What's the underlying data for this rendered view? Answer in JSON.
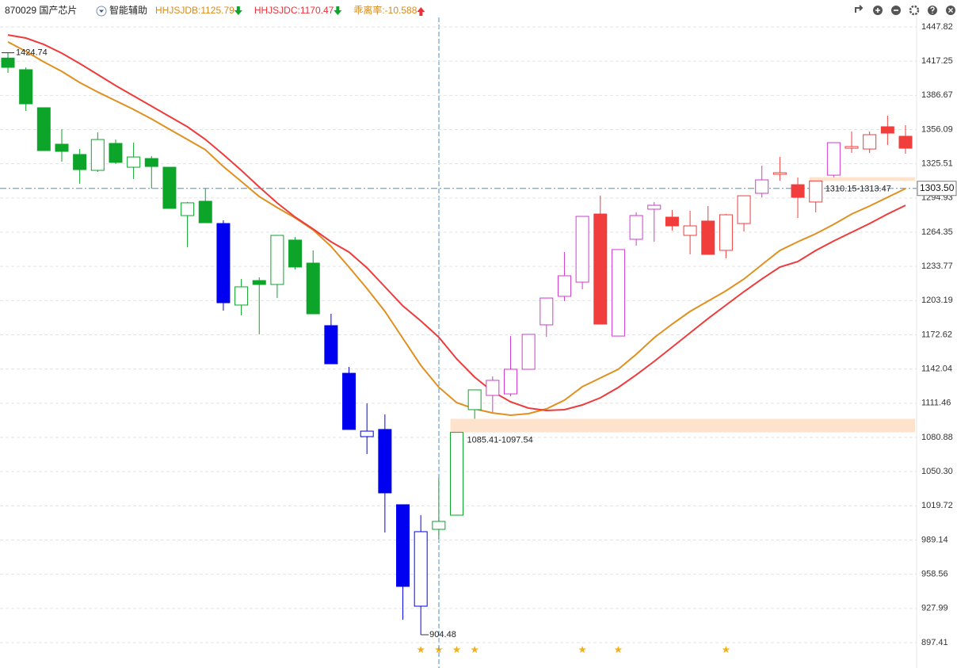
{
  "header": {
    "title": "870029 国产芯片",
    "assist": "智能辅助",
    "indicators": [
      {
        "text": "HHJSJDB:1125.79",
        "color": "#d98a1a",
        "arrow": "down",
        "arrow_color": "#0ca52a"
      },
      {
        "text": "HHJSJDC:1170.47",
        "color": "#e8333a",
        "arrow": "down",
        "arrow_color": "#0ca52a"
      },
      {
        "text": "乖离率:-10.588",
        "color": "#d98a1a",
        "arrow": "up",
        "arrow_color": "#e8333a"
      }
    ]
  },
  "chart_data": {
    "type": "candlestick",
    "ylim": [
      880.41,
      1457.74
    ],
    "yticks": [
      1447.82,
      1417.25,
      1386.67,
      1356.09,
      1325.51,
      1294.93,
      1264.35,
      1233.77,
      1203.19,
      1172.62,
      1142.04,
      1111.46,
      1080.88,
      {
        "value": 1050.3,
        "label": "1050.30"
      },
      1019.72,
      989.14,
      958.56,
      927.99,
      897.41
    ],
    "grid": true,
    "candles": {
      "open": [
        1420.0,
        1409.6,
        1375.6,
        1343.0,
        1333.8,
        1319.6,
        1343.7,
        1322.4,
        1330.2,
        1322.4,
        1279.2,
        1292.0,
        1272.1,
        1199.2,
        1221.1,
        1217.6,
        1257.3,
        1236.7,
        1180.8,
        1138.2,
        1081.6,
        1088.0,
        1020.7,
        930.0,
        998.7,
        1011.4,
        1105.7,
        1118.4,
        1119.8,
        1141.8,
        1181.5,
        1207.0,
        1219.7,
        1280.6,
        1171.5,
        1258.0,
        1284.9,
        1277.8,
        1261.5,
        1274.3,
        1248.1,
        1272.1,
        1299.1,
        1316.1,
        1306.8,
        1291.3,
        1315.3,
        1339.4,
        1338.7,
        1358.6,
        1350.1
      ],
      "high": [
        1424.74,
        1411.7,
        1375.6,
        1356.4,
        1338.7,
        1353.6,
        1347.2,
        1344.4,
        1332.4,
        1322.4,
        1291.3,
        1303.3,
        1275.0,
        1222.5,
        1224.0,
        1261.5,
        1260.1,
        1248.1,
        1191.4,
        1143.9,
        1111.3,
        1101.4,
        1020.7,
        1011.4,
        1044.7,
        1085.41,
        1123.4,
        1135.4,
        1171.5,
        1173.0,
        1205.5,
        1246.6,
        1278.5,
        1296.9,
        1248.8,
        1282.1,
        1291.3,
        1284.2,
        1283.5,
        1287.7,
        1280.6,
        1296.9,
        1323.8,
        1331.6,
        1313.2,
        1310.15,
        1344.4,
        1354.3,
        1354.3,
        1368.5,
        1360.0
      ],
      "low": [
        1406.7,
        1372.7,
        1337.3,
        1327.4,
        1307.6,
        1318.2,
        1325.3,
        1311.8,
        1303.3,
        1285.6,
        1250.9,
        1272.8,
        1194.2,
        1190.0,
        1173.0,
        1205.5,
        1231.0,
        1191.4,
        1146.7,
        1088.0,
        1066.0,
        995.9,
        917.9,
        904.48,
        989.5,
        1011.4,
        1097.54,
        1103.5,
        1117.7,
        1141.8,
        1170.8,
        1202.7,
        1213.3,
        1182.2,
        1171.5,
        1252.3,
        1255.8,
        1265.8,
        1244.5,
        1244.5,
        1241.0,
        1265.1,
        1295.5,
        1310.4,
        1277.1,
        1282.1,
        1313.47,
        1335.2,
        1335.2,
        1342.3,
        1334.5
      ],
      "close": [
        1411.7,
        1379.1,
        1337.3,
        1336.6,
        1320.3,
        1347.2,
        1326.7,
        1331.6,
        1323.1,
        1285.6,
        1290.6,
        1272.8,
        1201.3,
        1215.5,
        1217.6,
        1261.5,
        1233.2,
        1191.4,
        1146.7,
        1088.0,
        1086.5,
        1031.3,
        947.7,
        996.6,
        1005.8,
        1085.41,
        1123.4,
        1131.9,
        1141.8,
        1173.0,
        1205.5,
        1225.4,
        1278.5,
        1182.2,
        1248.8,
        1279.2,
        1288.4,
        1270.0,
        1270.0,
        1244.5,
        1279.9,
        1296.9,
        1311.1,
        1317.5,
        1295.5,
        1310.15,
        1344.4,
        1340.9,
        1351.5,
        1352.9,
        1339.4
      ],
      "colors": [
        "#0ca52a",
        "#0ca52a",
        "#0ca52a",
        "#0ca52a",
        "#0ca52a",
        "#0ca52a",
        "#0ca52a",
        "#0ca52a",
        "#0ca52a",
        "#0ca52a",
        "#0ca52a",
        "#0ca52a",
        "#0000f0",
        "#0ca52a",
        "#0ca52a",
        "#0ca52a",
        "#0ca52a",
        "#0ca52a",
        "#0000f0",
        "#0000f0",
        "#0000f0",
        "#0000f0",
        "#0000f0",
        "#0000f0",
        "#0ca52a",
        "#0ca52a",
        "#0ca52a",
        "#d23ad2",
        "#d23ad2",
        "#d23ad2",
        "#d23ad2",
        "#d23ad2",
        "#d23ad2",
        "#f23d3d",
        "#d23ad2",
        "#d23ad2",
        "#d23ad2",
        "#f23d3d",
        "#f23d3d",
        "#f23d3d",
        "#f23d3d",
        "#f23d3d",
        "#d23ad2",
        "#f23d3d",
        "#f23d3d",
        "#f23d3d",
        "#d23ad2",
        "#f23d3d",
        "#f23d3d",
        "#f23d3d",
        "#f23d3d"
      ]
    },
    "lines": [
      {
        "color": "#e0901f",
        "values": [
          1434.4,
          1425.9,
          1416.6,
          1408.1,
          1398.2,
          1389.7,
          1381.9,
          1374.1,
          1365.6,
          1356.4,
          1347.2,
          1338.0,
          1323.1,
          1309.7,
          1296.2,
          1286.3,
          1277.1,
          1266.5,
          1251.6,
          1233.2,
          1214.0,
          1193.5,
          1169.4,
          1145.3,
          1125.79,
          1112.0,
          1106.4,
          1102.8,
          1100.7,
          1102.1,
          1106.4,
          1114.2,
          1126.2,
          1134.0,
          1141.8,
          1155.2,
          1170.1,
          1182.2,
          1193.5,
          1202.7,
          1211.9,
          1222.5,
          1235.3,
          1248.0,
          1255.8,
          1262.9,
          1271.4,
          1280.6,
          1287.7,
          1295.5,
          1303.3
        ]
      },
      {
        "color": "#ee3b3b",
        "values": [
          1440.7,
          1437.9,
          1432.2,
          1424.4,
          1415.2,
          1405.3,
          1395.4,
          1386.2,
          1377.0,
          1367.8,
          1358.6,
          1347.2,
          1333.8,
          1319.6,
          1304.7,
          1290.5,
          1277.8,
          1267.2,
          1255.8,
          1246.6,
          1232.5,
          1215.5,
          1198.5,
          1185.0,
          1170.47,
          1151.0,
          1134.7,
          1121.9,
          1112.7,
          1107.1,
          1105.0,
          1105.7,
          1109.9,
          1116.3,
          1125.5,
          1136.8,
          1148.9,
          1161.6,
          1174.4,
          1187.1,
          1199.2,
          1211.2,
          1222.5,
          1233.2,
          1238.1,
          1248.0,
          1256.5,
          1264.3,
          1272.1,
          1280.6,
          1288.4
        ]
      }
    ],
    "max_label": 1424.74,
    "min_label": 904.48,
    "zones": [
      {
        "label": "1085.41-1097.54",
        "low": 1085.41,
        "high": 1097.54
      },
      {
        "label": "1310.15-1313.47",
        "low": 1310.15,
        "high": 1313.47
      }
    ],
    "crosshair": {
      "value": 1303.5,
      "label": "1303.50"
    }
  }
}
